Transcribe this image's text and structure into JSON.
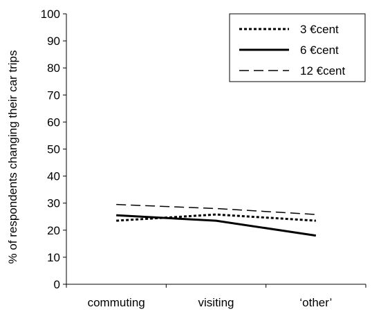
{
  "chart_data": {
    "type": "line",
    "title": "",
    "xlabel": "",
    "ylabel": "% of respondents changing their car trips",
    "categories": [
      "commuting",
      "visiting",
      "‘other’"
    ],
    "ylim": [
      0,
      100
    ],
    "yticks": [
      0,
      10,
      20,
      30,
      40,
      50,
      60,
      70,
      80,
      90,
      100
    ],
    "grid": false,
    "legend_position": "top-right",
    "series": [
      {
        "name": "3 €cent",
        "values": [
          23.5,
          25.8,
          23.5
        ],
        "style": "dotted",
        "color": "#000000"
      },
      {
        "name": "6 €cent",
        "values": [
          25.5,
          23.5,
          18.0
        ],
        "style": "solid",
        "color": "#000000"
      },
      {
        "name": "12 €cent",
        "values": [
          29.5,
          28.0,
          25.8
        ],
        "style": "dashed",
        "color": "#000000"
      }
    ]
  }
}
